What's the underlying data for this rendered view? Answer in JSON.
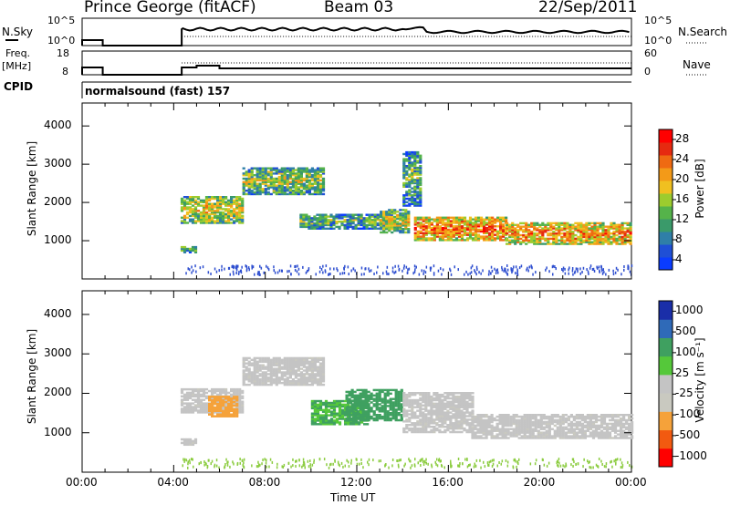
{
  "header": {
    "station": "Prince George (fitACF)",
    "beam": "Beam 03",
    "date": "22/Sep/2011"
  },
  "top_panels": {
    "nsky_label": "N.Sky",
    "nsky_ticks": [
      "10^5",
      "10^0"
    ],
    "nsearch_label": "N.Search",
    "nsearch_ticks": [
      "10^5",
      "10^0"
    ],
    "freq_label_1": "Freq.",
    "freq_label_2": "[MHz]",
    "freq_ticks": [
      "18",
      "8"
    ],
    "nave_label": "Nave",
    "nave_ticks": [
      "60",
      "0"
    ],
    "cpid_label": "CPID",
    "cpid_value": "normalsound (fast) 157"
  },
  "colors": {
    "power": [
      "#0a3cff",
      "#1f4fd6",
      "#2f7fa8",
      "#3a9a6a",
      "#55b34a",
      "#9ccc2e",
      "#f0c020",
      "#f39a18",
      "#ef6a12",
      "#e62a10",
      "#ff0000"
    ],
    "velocity": [
      "#ff0000",
      "#f25a10",
      "#f5a23a",
      "#c9c9c0",
      "#c4c4c4",
      "#55c83a",
      "#3fa060",
      "#2f6ab8",
      "#1a2ea8"
    ],
    "axis": "#000000"
  },
  "chart_data": [
    {
      "type": "heatmap",
      "name": "power",
      "ylabel": "Slant Range [km]",
      "yticks": [
        "4000",
        "3000",
        "2000",
        "1000"
      ],
      "ylim": [
        0,
        4600
      ],
      "colorbar_label": "Power [dB]",
      "colorbar_ticks": [
        "28",
        "24",
        "20",
        "16",
        "12",
        "8",
        "4"
      ],
      "colorbar_range": [
        0,
        31
      ],
      "bands": [
        {
          "t0": 4.3,
          "t1": 5.0,
          "r0": 680,
          "r1": 860,
          "level": 0.5
        },
        {
          "t0": 4.3,
          "t1": 7.0,
          "r0": 1450,
          "r1": 2150,
          "level": 0.65
        },
        {
          "t0": 7.0,
          "t1": 10.5,
          "r0": 2200,
          "r1": 2900,
          "level": 0.55
        },
        {
          "t0": 9.5,
          "t1": 13.5,
          "r0": 1300,
          "r1": 1700,
          "level": 0.45
        },
        {
          "t0": 13.0,
          "t1": 14.3,
          "r0": 1200,
          "r1": 1800,
          "level": 0.6
        },
        {
          "t0": 14.0,
          "t1": 14.8,
          "r0": 1900,
          "r1": 3300,
          "level": 0.45
        },
        {
          "t0": 14.5,
          "t1": 18.5,
          "r0": 1000,
          "r1": 1600,
          "level": 0.85
        },
        {
          "t0": 18.5,
          "t1": 24.0,
          "r0": 900,
          "r1": 1450,
          "level": 0.8
        }
      ]
    },
    {
      "type": "heatmap",
      "name": "velocity",
      "ylabel": "Slant Range [km]",
      "yticks": [
        "4000",
        "3000",
        "2000",
        "1000"
      ],
      "ylim": [
        0,
        4600
      ],
      "colorbar_label": "Velocity [m s⁻¹]",
      "colorbar_ticks": [
        "1000",
        "500",
        "100",
        "25",
        "-25",
        "-100",
        "-500",
        "-1000"
      ],
      "colorbar_range": [
        -1200,
        1200
      ],
      "bands": [
        {
          "t0": 4.3,
          "t1": 5.0,
          "r0": 680,
          "r1": 860,
          "vel": 0
        },
        {
          "t0": 4.3,
          "t1": 7.0,
          "r0": 1500,
          "r1": 2100,
          "vel": 0
        },
        {
          "t0": 7.0,
          "t1": 10.5,
          "r0": 2200,
          "r1": 2900,
          "vel": 0
        },
        {
          "t0": 5.5,
          "t1": 6.8,
          "r0": 1400,
          "r1": 1900,
          "vel": -300
        },
        {
          "t0": 10.0,
          "t1": 12.5,
          "r0": 1200,
          "r1": 1800,
          "vel": 150
        },
        {
          "t0": 11.5,
          "t1": 14.0,
          "r0": 1300,
          "r1": 2100,
          "vel": 300
        },
        {
          "t0": 14.0,
          "t1": 17.0,
          "r0": 1000,
          "r1": 2000,
          "vel": 0
        },
        {
          "t0": 17.0,
          "t1": 24.0,
          "r0": 850,
          "r1": 1450,
          "vel": 0
        }
      ]
    }
  ],
  "x_axis": {
    "label": "Time UT",
    "ticks": [
      "00:00",
      "04:00",
      "08:00",
      "12:00",
      "16:00",
      "20:00",
      "00:00"
    ],
    "range_hours": [
      0,
      24
    ]
  }
}
